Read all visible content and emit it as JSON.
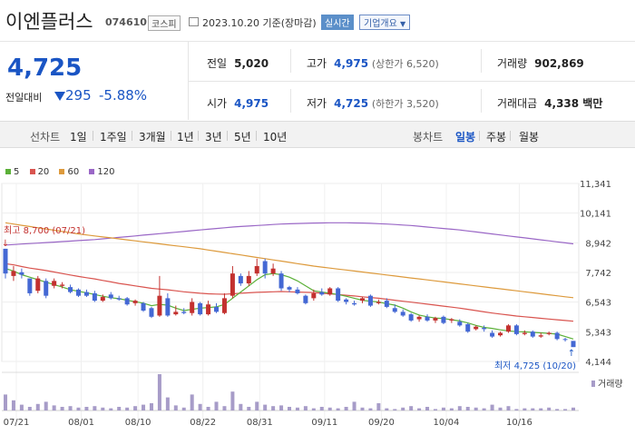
{
  "header": {
    "name": "이엔플러스",
    "code": "074610",
    "market": "코스피",
    "date": "2023.10.20 기준(장마감)",
    "live": "실시간",
    "info": "기업개요"
  },
  "price": {
    "current": "4,725",
    "change_label": "전일대비",
    "change": "295",
    "change_pct": "-5.88%"
  },
  "stats": {
    "prev_label": "전일",
    "prev": "5,020",
    "high_label": "고가",
    "high": "4,975",
    "upper_label": "(상한가 6,520)",
    "volume_label": "거래량",
    "volume": "902,869",
    "open_label": "시가",
    "open": "4,975",
    "low_label": "저가",
    "low": "4,725",
    "lower_label": "(하한가 3,520)",
    "amount_label": "거래대금",
    "amount": "4,338 백만"
  },
  "toolbar": {
    "line_label": "선차트",
    "periods": [
      "1일",
      "1주일",
      "3개월",
      "1년",
      "3년",
      "5년",
      "10년"
    ],
    "candle_label": "봉차트",
    "candles": [
      "일봉",
      "주봉",
      "월봉"
    ]
  },
  "colors": {
    "up": "#c3312f",
    "down": "#4468d4",
    "ma5": "#5bb038",
    "ma20": "#d9544f",
    "ma60": "#dd9a3c",
    "ma120": "#9a67c6",
    "volume": "#a79cc8"
  },
  "chart_data": {
    "type": "candlestick",
    "yticks": [
      "11,341",
      "10,141",
      "8,942",
      "7,742",
      "6,543",
      "5,343",
      "4,144"
    ],
    "ylim": [
      4144,
      11341
    ],
    "xticks": [
      "07/21",
      "08/01",
      "08/10",
      "08/22",
      "08/31",
      "09/11",
      "09/20",
      "10/04",
      "10/16"
    ],
    "legend": [
      "5",
      "20",
      "60",
      "120"
    ],
    "volume_label": "거래량",
    "high_annotation": "최고 8,700 (07/21)",
    "low_annotation": "최저 4,725 (10/20)",
    "candles": [
      {
        "o": 8700,
        "c": 7700,
        "h": 8700,
        "l": 7500
      },
      {
        "o": 7600,
        "c": 7800,
        "h": 8000,
        "l": 7400
      },
      {
        "o": 7750,
        "c": 7650,
        "h": 7900,
        "l": 7500
      },
      {
        "o": 7500,
        "c": 6900,
        "h": 7500,
        "l": 6800
      },
      {
        "o": 7000,
        "c": 7500,
        "h": 7600,
        "l": 6900
      },
      {
        "o": 7400,
        "c": 6800,
        "h": 7500,
        "l": 6700
      },
      {
        "o": 7200,
        "c": 7400,
        "h": 7500,
        "l": 7100
      },
      {
        "o": 7200,
        "c": 7250,
        "h": 7350,
        "l": 7100
      },
      {
        "o": 7150,
        "c": 6950,
        "h": 7250,
        "l": 6900
      },
      {
        "o": 7050,
        "c": 6800,
        "h": 7100,
        "l": 6750
      },
      {
        "o": 6950,
        "c": 6800,
        "h": 7050,
        "l": 6750
      },
      {
        "o": 6900,
        "c": 6600,
        "h": 7000,
        "l": 6550
      },
      {
        "o": 6600,
        "c": 6750,
        "h": 6850,
        "l": 6550
      },
      {
        "o": 6850,
        "c": 6700,
        "h": 6950,
        "l": 6650
      },
      {
        "o": 6700,
        "c": 6650,
        "h": 6800,
        "l": 6600
      },
      {
        "o": 6700,
        "c": 6450,
        "h": 6750,
        "l": 6400
      },
      {
        "o": 6500,
        "c": 6600,
        "h": 6650,
        "l": 6400
      },
      {
        "o": 6500,
        "c": 6200,
        "h": 6550,
        "l": 6150
      },
      {
        "o": 6300,
        "c": 5950,
        "h": 6350,
        "l": 5900
      },
      {
        "o": 6000,
        "c": 6800,
        "h": 7600,
        "l": 5950
      },
      {
        "o": 6700,
        "c": 6000,
        "h": 6900,
        "l": 5950
      },
      {
        "o": 6050,
        "c": 6150,
        "h": 6400,
        "l": 6000
      },
      {
        "o": 6150,
        "c": 6100,
        "h": 6300,
        "l": 6050
      },
      {
        "o": 6100,
        "c": 6550,
        "h": 6700,
        "l": 6000
      },
      {
        "o": 6500,
        "c": 6050,
        "h": 6550,
        "l": 6000
      },
      {
        "o": 6050,
        "c": 6450,
        "h": 6600,
        "l": 6000
      },
      {
        "o": 6350,
        "c": 6150,
        "h": 6500,
        "l": 6100
      },
      {
        "o": 6100,
        "c": 6700,
        "h": 6900,
        "l": 6050
      },
      {
        "o": 6800,
        "c": 7700,
        "h": 8000,
        "l": 6700
      },
      {
        "o": 7600,
        "c": 7300,
        "h": 7700,
        "l": 7200
      },
      {
        "o": 7300,
        "c": 7600,
        "h": 7800,
        "l": 7200
      },
      {
        "o": 7700,
        "c": 8000,
        "h": 8300,
        "l": 7600
      },
      {
        "o": 8200,
        "c": 7700,
        "h": 8300,
        "l": 7500
      },
      {
        "o": 7700,
        "c": 7900,
        "h": 8100,
        "l": 7600
      },
      {
        "o": 7700,
        "c": 7100,
        "h": 7800,
        "l": 7000
      },
      {
        "o": 7150,
        "c": 7050,
        "h": 7200,
        "l": 6950
      },
      {
        "o": 7050,
        "c": 6900,
        "h": 7150,
        "l": 6850
      },
      {
        "o": 6800,
        "c": 6500,
        "h": 6850,
        "l": 6450
      },
      {
        "o": 6700,
        "c": 6900,
        "h": 7050,
        "l": 6600
      },
      {
        "o": 6950,
        "c": 6850,
        "h": 7100,
        "l": 6800
      },
      {
        "o": 6850,
        "c": 7100,
        "h": 7150,
        "l": 6800
      },
      {
        "o": 7100,
        "c": 6600,
        "h": 7150,
        "l": 6550
      },
      {
        "o": 6650,
        "c": 6550,
        "h": 6700,
        "l": 6450
      },
      {
        "o": 6500,
        "c": 6450,
        "h": 6600,
        "l": 6400
      },
      {
        "o": 6600,
        "c": 6700,
        "h": 6750,
        "l": 6500
      },
      {
        "o": 6800,
        "c": 6400,
        "h": 6850,
        "l": 6350
      },
      {
        "o": 6500,
        "c": 6550,
        "h": 6650,
        "l": 6450
      },
      {
        "o": 6600,
        "c": 6350,
        "h": 6700,
        "l": 6300
      },
      {
        "o": 6300,
        "c": 6150,
        "h": 6450,
        "l": 6100
      },
      {
        "o": 6150,
        "c": 6000,
        "h": 6250,
        "l": 5950
      },
      {
        "o": 6050,
        "c": 5800,
        "h": 6100,
        "l": 5750
      },
      {
        "o": 5850,
        "c": 5950,
        "h": 6000,
        "l": 5750
      },
      {
        "o": 5950,
        "c": 5800,
        "h": 6050,
        "l": 5750
      },
      {
        "o": 5800,
        "c": 5900,
        "h": 5950,
        "l": 5700
      },
      {
        "o": 5950,
        "c": 5700,
        "h": 6000,
        "l": 5650
      },
      {
        "o": 5800,
        "c": 5850,
        "h": 5900,
        "l": 5700
      },
      {
        "o": 5750,
        "c": 5600,
        "h": 5850,
        "l": 5550
      },
      {
        "o": 5650,
        "c": 5350,
        "h": 5700,
        "l": 5300
      },
      {
        "o": 5450,
        "c": 5550,
        "h": 5600,
        "l": 5400
      },
      {
        "o": 5500,
        "c": 5450,
        "h": 5600,
        "l": 5350
      },
      {
        "o": 5300,
        "c": 5150,
        "h": 5400,
        "l": 5100
      },
      {
        "o": 5200,
        "c": 5300,
        "h": 5350,
        "l": 5150
      },
      {
        "o": 5350,
        "c": 5600,
        "h": 5650,
        "l": 5300
      },
      {
        "o": 5600,
        "c": 5250,
        "h": 5650,
        "l": 5200
      },
      {
        "o": 5250,
        "c": 5300,
        "h": 5400,
        "l": 5200
      },
      {
        "o": 5350,
        "c": 5150,
        "h": 5400,
        "l": 5100
      },
      {
        "o": 5150,
        "c": 5200,
        "h": 5300,
        "l": 5100
      },
      {
        "o": 5250,
        "c": 5300,
        "h": 5350,
        "l": 5200
      },
      {
        "o": 5300,
        "c": 5050,
        "h": 5350,
        "l": 5000
      },
      {
        "o": 5050,
        "c": 5020,
        "h": 5100,
        "l": 4950
      },
      {
        "o": 4975,
        "c": 4725,
        "h": 4975,
        "l": 4725
      }
    ],
    "volumes": [
      22,
      14,
      8,
      5,
      9,
      12,
      7,
      5,
      6,
      4,
      5,
      6,
      4,
      3,
      5,
      4,
      6,
      8,
      10,
      50,
      18,
      7,
      4,
      22,
      9,
      5,
      12,
      6,
      26,
      9,
      5,
      12,
      8,
      6,
      7,
      5,
      4,
      6,
      3,
      5,
      4,
      3,
      5,
      12,
      4,
      3,
      10,
      3,
      2,
      4,
      6,
      3,
      5,
      2,
      4,
      3,
      6,
      5,
      4,
      3,
      8,
      4,
      6,
      2,
      3,
      3,
      3,
      4,
      2,
      2,
      4
    ],
    "ma5": [
      7900,
      7800,
      7650,
      7550,
      7450,
      7350,
      7250,
      7150,
      7050,
      6980,
      6920,
      6850,
      6780,
      6720,
      6680,
      6620,
      6560,
      6500,
      6400,
      6450,
      6420,
      6300,
      6200,
      6250,
      6300,
      6320,
      6350,
      6450,
      6700,
      6950,
      7200,
      7450,
      7650,
      7700,
      7650,
      7550,
      7400,
      7200,
      7000,
      6950,
      6900,
      6850,
      6780,
      6700,
      6620,
      6580,
      6550,
      6480,
      6420,
      6300,
      6150,
      6020,
      5950,
      5900,
      5880,
      5830,
      5780,
      5700,
      5600,
      5520,
      5480,
      5420,
      5380,
      5350,
      5340,
      5320,
      5300,
      5280,
      5250,
      5150,
      5050
    ],
    "ma20": [
      8100,
      8050,
      7980,
      7920,
      7870,
      7820,
      7760,
      7700,
      7640,
      7580,
      7530,
      7480,
      7420,
      7360,
      7300,
      7250,
      7200,
      7150,
      7100,
      7070,
      7040,
      7000,
      6960,
      6930,
      6900,
      6880,
      6870,
      6860,
      6880,
      6900,
      6920,
      6940,
      6950,
      6960,
      6970,
      6960,
      6950,
      6940,
      6930,
      6900,
      6880,
      6850,
      6820,
      6790,
      6760,
      6730,
      6700,
      6660,
      6620,
      6580,
      6540,
      6500,
      6460,
      6420,
      6380,
      6340,
      6300,
      6250,
      6200,
      6150,
      6100,
      6060,
      6020,
      5980,
      5950,
      5920,
      5890,
      5860,
      5830,
      5800,
      5770
    ],
    "ma60": [
      9750,
      9700,
      9650,
      9600,
      9550,
      9500,
      9450,
      9400,
      9350,
      9300,
      9260,
      9220,
      9180,
      9140,
      9100,
      9060,
      9020,
      8980,
      8940,
      8900,
      8860,
      8820,
      8780,
      8740,
      8700,
      8650,
      8600,
      8550,
      8500,
      8450,
      8400,
      8350,
      8300,
      8250,
      8200,
      8150,
      8100,
      8050,
      8000,
      7960,
      7920,
      7880,
      7840,
      7800,
      7760,
      7720,
      7680,
      7640,
      7600,
      7560,
      7520,
      7480,
      7440,
      7400,
      7360,
      7320,
      7280,
      7240,
      7200,
      7160,
      7120,
      7080,
      7040,
      7000,
      6960,
      6920,
      6880,
      6840,
      6800,
      6760,
      6720
    ],
    "ma120": [
      8850,
      8870,
      8890,
      8910,
      8930,
      8950,
      8970,
      8990,
      9010,
      9030,
      9050,
      9070,
      9100,
      9130,
      9160,
      9190,
      9220,
      9250,
      9280,
      9310,
      9340,
      9370,
      9400,
      9430,
      9460,
      9490,
      9520,
      9550,
      9580,
      9600,
      9620,
      9640,
      9660,
      9680,
      9700,
      9710,
      9720,
      9730,
      9740,
      9745,
      9750,
      9750,
      9750,
      9745,
      9740,
      9730,
      9715,
      9700,
      9680,
      9660,
      9640,
      9610,
      9580,
      9550,
      9520,
      9490,
      9460,
      9420,
      9380,
      9340,
      9300,
      9260,
      9220,
      9180,
      9140,
      9100,
      9060,
      9020,
      8980,
      8940,
      8900
    ]
  }
}
